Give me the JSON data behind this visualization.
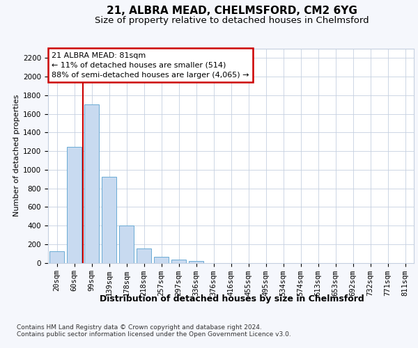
{
  "title1": "21, ALBRA MEAD, CHELMSFORD, CM2 6YG",
  "title2": "Size of property relative to detached houses in Chelmsford",
  "xlabel": "Distribution of detached houses by size in Chelmsford",
  "ylabel": "Number of detached properties",
  "categories": [
    "20sqm",
    "60sqm",
    "99sqm",
    "139sqm",
    "178sqm",
    "218sqm",
    "257sqm",
    "297sqm",
    "336sqm",
    "376sqm",
    "416sqm",
    "455sqm",
    "495sqm",
    "534sqm",
    "574sqm",
    "613sqm",
    "653sqm",
    "692sqm",
    "732sqm",
    "771sqm",
    "811sqm"
  ],
  "values": [
    120,
    1245,
    1700,
    925,
    400,
    150,
    65,
    35,
    20,
    0,
    0,
    0,
    0,
    0,
    0,
    0,
    0,
    0,
    0,
    0,
    0
  ],
  "bar_color": "#c8daf0",
  "bar_edge_color": "#6aaad4",
  "vline_x": 1.5,
  "vline_color": "#cc0000",
  "annotation_text": "21 ALBRA MEAD: 81sqm\n← 11% of detached houses are smaller (514)\n88% of semi-detached houses are larger (4,065) →",
  "annotation_box_color": "#ffffff",
  "annotation_box_edge": "#cc0000",
  "ylim": [
    0,
    2300
  ],
  "yticks": [
    0,
    200,
    400,
    600,
    800,
    1000,
    1200,
    1400,
    1600,
    1800,
    2000,
    2200
  ],
  "footer1": "Contains HM Land Registry data © Crown copyright and database right 2024.",
  "footer2": "Contains public sector information licensed under the Open Government Licence v3.0.",
  "bg_color": "#f5f7fc",
  "plot_bg_color": "#ffffff",
  "grid_color": "#c5d0e0",
  "title1_fontsize": 11,
  "title2_fontsize": 9.5,
  "tick_fontsize": 7.5,
  "xlabel_fontsize": 9,
  "ylabel_fontsize": 8,
  "annotation_fontsize": 8,
  "footer_fontsize": 6.5
}
